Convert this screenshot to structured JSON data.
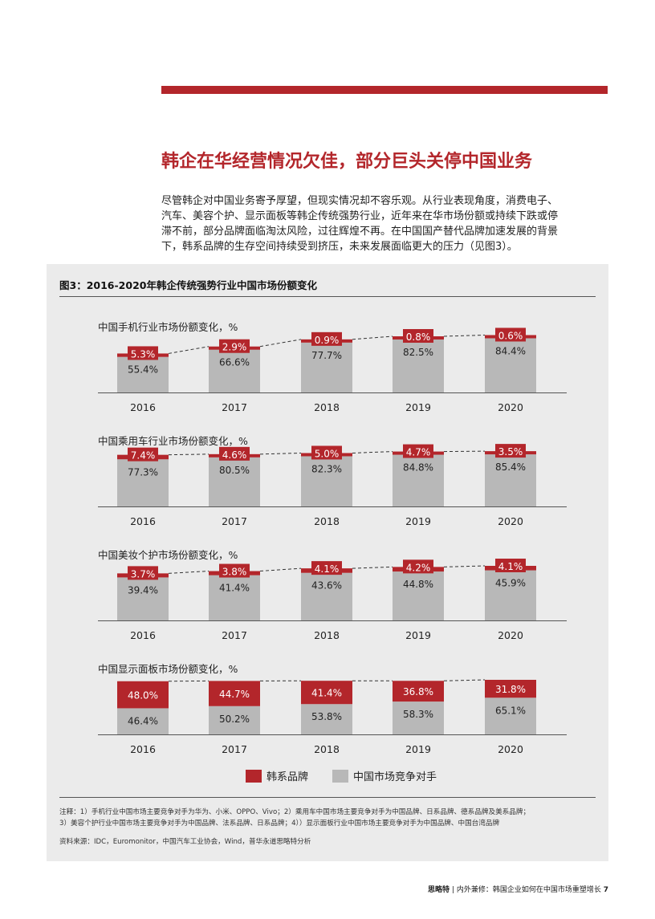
{
  "page": {
    "title": "韩企在华经营情况欠佳，部分巨头关停中国业务",
    "intro_lines": [
      "尽管韩企对中国业务寄予厚望，但现实情况却不容乐观。从行业表现角度，消费电子、",
      "汽车、美容个护、显示面板等韩企传统强势行业，近年来在华市场份额或持续下跌或停",
      "滞不前，部分品牌面临淘汰风险，过往辉煌不再。在中国国产替代品牌加速发展的背景",
      "下，韩系品牌的生存空间持续受到挤压，未来发展面临更大的压力（见图3）。"
    ],
    "figure_title": "图3：2016-2020年韩企传统强势行业中国市场份额变化",
    "legend": {
      "korean": "韩系品牌",
      "chinese": "中国市场竞争对手"
    },
    "notes": [
      "注释：1）手机行业中国市场主要竞争对手为华为、小米、OPPO、Vivo；2）乘用车中国市场主要竞争对手为中国品牌、日系品牌、德系品牌及美系品牌；",
      "3）美容个护行业中国市场主要竞争对手为中国品牌、法系品牌、日系品牌；4））显示面板行业中国市场主要竞争对手为中国品牌、中国台湾品牌"
    ],
    "source": "资料来源：IDC，Euromonitor，中国汽车工业协会，Wind，普华永道思略特分析",
    "footer": {
      "brand": "思略特",
      "sep": "|",
      "text": "内外兼修：韩国企业如何在中国市场重塑增长",
      "page_no": "7"
    }
  },
  "colors": {
    "korean": "#b3262b",
    "chinese": "#b8b8b8",
    "accent": "#b3262b",
    "panel": "#ebebeb"
  },
  "chart_data": [
    {
      "type": "bar",
      "title": "中国手机行业市场份额变化，%",
      "categories": [
        "2016",
        "2017",
        "2018",
        "2019",
        "2020"
      ],
      "series": [
        {
          "name": "韩系品牌",
          "values": [
            5.3,
            2.9,
            0.9,
            0.8,
            0.6
          ]
        },
        {
          "name": "中国市场竞争对手",
          "values": [
            55.4,
            66.6,
            77.7,
            82.5,
            84.4
          ]
        }
      ],
      "labels_korean": [
        "5.3%",
        "2.9%",
        "0.9%",
        "0.8%",
        "0.6%"
      ],
      "labels_chinese": [
        "55.4%",
        "66.6%",
        "77.7%",
        "82.5%",
        "84.4%"
      ],
      "stacked": true
    },
    {
      "type": "bar",
      "title": "中国乘用车行业市场份额变化，%",
      "categories": [
        "2016",
        "2017",
        "2018",
        "2019",
        "2020"
      ],
      "series": [
        {
          "name": "韩系品牌",
          "values": [
            7.4,
            4.6,
            5.0,
            4.7,
            3.5
          ]
        },
        {
          "name": "中国市场竞争对手",
          "values": [
            77.3,
            80.5,
            82.3,
            84.8,
            85.4
          ]
        }
      ],
      "labels_korean": [
        "7.4%",
        "4.6%",
        "5.0%",
        "4.7%",
        "3.5%"
      ],
      "labels_chinese": [
        "77.3%",
        "80.5%",
        "82.3%",
        "84.8%",
        "85.4%"
      ],
      "stacked": true
    },
    {
      "type": "bar",
      "title": "中国美妆个护市场份额变化，%",
      "categories": [
        "2016",
        "2017",
        "2018",
        "2019",
        "2020"
      ],
      "series": [
        {
          "name": "韩系品牌",
          "values": [
            3.7,
            3.8,
            4.1,
            4.2,
            4.1
          ]
        },
        {
          "name": "中国市场竞争对手",
          "values": [
            39.4,
            41.4,
            43.6,
            44.8,
            45.9
          ]
        }
      ],
      "labels_korean": [
        "3.7%",
        "3.8%",
        "4.1%",
        "4.2%",
        "4.1%"
      ],
      "labels_chinese": [
        "39.4%",
        "41.4%",
        "43.6%",
        "44.8%",
        "45.9%"
      ],
      "stacked": true
    },
    {
      "type": "bar",
      "title": "中国显示面板市场份额变化，%",
      "categories": [
        "2016",
        "2017",
        "2018",
        "2019",
        "2020"
      ],
      "series": [
        {
          "name": "韩系品牌",
          "values": [
            48.0,
            44.7,
            41.4,
            36.8,
            31.8
          ]
        },
        {
          "name": "中国市场竞争对手",
          "values": [
            46.4,
            50.2,
            53.8,
            58.3,
            65.1
          ]
        }
      ],
      "labels_korean": [
        "48.0%",
        "44.7%",
        "41.4%",
        "36.8%",
        "31.8%"
      ],
      "labels_chinese": [
        "46.4%",
        "50.2%",
        "53.8%",
        "58.3%",
        "65.1%"
      ],
      "stacked": true
    }
  ]
}
